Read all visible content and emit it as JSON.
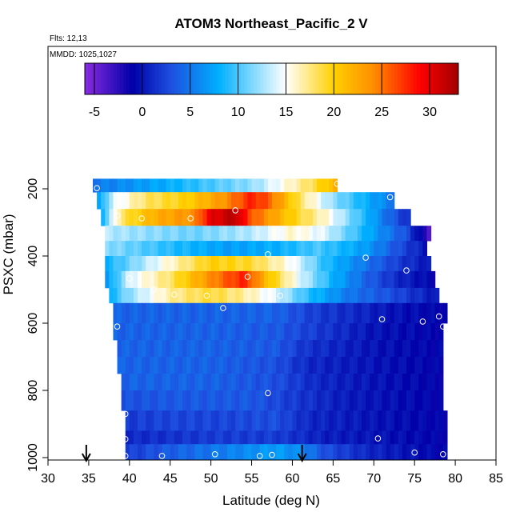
{
  "chart_data": {
    "type": "heatmap",
    "title": "ATOM3 Northeast_Pacific_2 V",
    "flights_label": "Flts: 12,13",
    "mmdd_label": "MMDD: 1025,1027",
    "xlabel": "Latitude (deg N)",
    "ylabel": "PSXC (mbar)",
    "xlim": [
      30,
      85
    ],
    "ylim": [
      1000,
      0
    ],
    "xticks": [
      "30",
      "35",
      "40",
      "45",
      "50",
      "55",
      "60",
      "65",
      "70",
      "75",
      "80",
      "85"
    ],
    "yticks": [
      "200",
      "400",
      "600",
      "800",
      "1000"
    ],
    "colorbar": {
      "range": [
        -6,
        33
      ],
      "tick_labels": [
        "-5",
        "0",
        "5",
        "10",
        "15",
        "20",
        "25",
        "30"
      ],
      "stops": [
        "#8a2be2",
        "#0000a8",
        "#1e4fe0",
        "#00b0ff",
        "#ffffff",
        "#ffd000",
        "#ff9000",
        "#ff0000",
        "#a00000"
      ]
    },
    "grid": false,
    "rows": [
      {
        "p_top": 170,
        "p_bot": 210,
        "lat_start": 35.5,
        "lat_end": 65.5,
        "knots": [
          [
            35.5,
            5
          ],
          [
            45,
            8
          ],
          [
            55,
            12
          ],
          [
            62,
            18
          ],
          [
            65.5,
            22
          ]
        ]
      },
      {
        "p_top": 210,
        "p_bot": 260,
        "lat_start": 36,
        "lat_end": 72.5,
        "knots": [
          [
            36,
            6
          ],
          [
            38,
            14
          ],
          [
            42,
            18
          ],
          [
            47,
            20
          ],
          [
            52,
            24
          ],
          [
            55,
            28
          ],
          [
            57,
            26
          ],
          [
            61,
            18
          ],
          [
            65,
            12
          ],
          [
            69,
            8
          ],
          [
            72.5,
            5
          ]
        ]
      },
      {
        "p_top": 260,
        "p_bot": 310,
        "lat_start": 36.5,
        "lat_end": 74.5,
        "knots": [
          [
            36.5,
            8
          ],
          [
            39,
            18
          ],
          [
            43,
            22
          ],
          [
            48,
            24
          ],
          [
            50,
            30
          ],
          [
            53,
            32
          ],
          [
            55,
            26
          ],
          [
            60,
            20
          ],
          [
            64,
            16
          ],
          [
            68,
            10
          ],
          [
            72,
            4
          ],
          [
            74.5,
            1
          ]
        ]
      },
      {
        "p_top": 310,
        "p_bot": 355,
        "lat_start": 37,
        "lat_end": 77,
        "knots": [
          [
            37,
            13
          ],
          [
            42,
            12
          ],
          [
            48,
            11
          ],
          [
            55,
            13
          ],
          [
            60,
            16
          ],
          [
            64,
            14
          ],
          [
            70,
            7
          ],
          [
            74,
            3
          ],
          [
            77,
            -4
          ]
        ]
      },
      {
        "p_top": 355,
        "p_bot": 400,
        "lat_start": 37,
        "lat_end": 76.5,
        "knots": [
          [
            37,
            12
          ],
          [
            45,
            9
          ],
          [
            52,
            7
          ],
          [
            58,
            8
          ],
          [
            63,
            10
          ],
          [
            69,
            7
          ],
          [
            73,
            3
          ],
          [
            76.5,
            0
          ]
        ]
      },
      {
        "p_top": 400,
        "p_bot": 445,
        "lat_start": 37,
        "lat_end": 77,
        "knots": [
          [
            37,
            8
          ],
          [
            41,
            12
          ],
          [
            45,
            16
          ],
          [
            50,
            20
          ],
          [
            55,
            19
          ],
          [
            60,
            15
          ],
          [
            64,
            9
          ],
          [
            69,
            5
          ],
          [
            73,
            2
          ],
          [
            77,
            0
          ]
        ]
      },
      {
        "p_top": 445,
        "p_bot": 495,
        "lat_start": 37,
        "lat_end": 77.5,
        "knots": [
          [
            37,
            6
          ],
          [
            40,
            14
          ],
          [
            45,
            18
          ],
          [
            50,
            24
          ],
          [
            54,
            28
          ],
          [
            57,
            21
          ],
          [
            61,
            14
          ],
          [
            65,
            8
          ],
          [
            69,
            4
          ],
          [
            73,
            1
          ],
          [
            77.5,
            -1
          ]
        ]
      },
      {
        "p_top": 495,
        "p_bot": 540,
        "lat_start": 37.5,
        "lat_end": 78,
        "knots": [
          [
            37.5,
            8
          ],
          [
            40,
            12
          ],
          [
            45,
            17
          ],
          [
            50,
            19
          ],
          [
            54,
            17
          ],
          [
            58,
            14
          ],
          [
            62,
            9
          ],
          [
            67,
            5
          ],
          [
            72,
            3
          ],
          [
            78,
            0
          ]
        ]
      },
      {
        "p_top": 540,
        "p_bot": 600,
        "lat_start": 38,
        "lat_end": 79,
        "knots": [
          [
            38,
            4
          ],
          [
            50,
            4
          ],
          [
            58,
            4
          ],
          [
            63,
            2
          ],
          [
            68,
            1
          ],
          [
            72,
            0
          ],
          [
            79,
            -1
          ]
        ]
      },
      {
        "p_top": 600,
        "p_bot": 650,
        "lat_start": 38,
        "lat_end": 78.5,
        "knots": [
          [
            38,
            4
          ],
          [
            50,
            4
          ],
          [
            58,
            3.5
          ],
          [
            63,
            2
          ],
          [
            70,
            0
          ],
          [
            78.5,
            -1
          ]
        ]
      },
      {
        "p_top": 650,
        "p_bot": 700,
        "lat_start": 38.5,
        "lat_end": 78.5,
        "knots": [
          [
            38.5,
            4
          ],
          [
            50,
            4
          ],
          [
            58,
            3.5
          ],
          [
            62,
            1.5
          ],
          [
            70,
            0
          ],
          [
            78.5,
            -1
          ]
        ]
      },
      {
        "p_top": 700,
        "p_bot": 750,
        "lat_start": 38.5,
        "lat_end": 78.5,
        "knots": [
          [
            38.5,
            4
          ],
          [
            50,
            4
          ],
          [
            58,
            3
          ],
          [
            62,
            1
          ],
          [
            70,
            0
          ],
          [
            78.5,
            -1
          ]
        ]
      },
      {
        "p_top": 750,
        "p_bot": 800,
        "lat_start": 39,
        "lat_end": 78.5,
        "knots": [
          [
            39,
            4
          ],
          [
            50,
            4
          ],
          [
            58,
            3
          ],
          [
            63,
            1
          ],
          [
            70,
            0
          ],
          [
            78.5,
            -1
          ]
        ]
      },
      {
        "p_top": 800,
        "p_bot": 860,
        "lat_start": 39,
        "lat_end": 78.5,
        "knots": [
          [
            39,
            3
          ],
          [
            45,
            3.5
          ],
          [
            55,
            3.5
          ],
          [
            60,
            2
          ],
          [
            66,
            0.5
          ],
          [
            78.5,
            -1
          ]
        ]
      },
      {
        "p_top": 860,
        "p_bot": 920,
        "lat_start": 39.5,
        "lat_end": 79,
        "knots": [
          [
            39.5,
            2
          ],
          [
            45,
            2.5
          ],
          [
            52,
            2.5
          ],
          [
            58,
            3
          ],
          [
            62,
            1
          ],
          [
            70,
            0
          ],
          [
            79,
            -1
          ]
        ]
      },
      {
        "p_top": 920,
        "p_bot": 960,
        "lat_start": 39.5,
        "lat_end": 79,
        "knots": [
          [
            39.5,
            1
          ],
          [
            50,
            2
          ],
          [
            58,
            2
          ],
          [
            64,
            0.5
          ],
          [
            70,
            0
          ],
          [
            79,
            -1
          ]
        ]
      },
      {
        "p_top": 960,
        "p_bot": 1005,
        "lat_start": 39.5,
        "lat_end": 79,
        "knots": [
          [
            39.5,
            2
          ],
          [
            46,
            4
          ],
          [
            50,
            5
          ],
          [
            54,
            6
          ],
          [
            58,
            7
          ],
          [
            61,
            6
          ],
          [
            64,
            3
          ],
          [
            69,
            1
          ],
          [
            74,
            0
          ],
          [
            79,
            -1
          ]
        ]
      }
    ],
    "points": [
      [
        36,
        198
      ],
      [
        65.5,
        185
      ],
      [
        72,
        225
      ],
      [
        41.5,
        288
      ],
      [
        47.5,
        288
      ],
      [
        53,
        264
      ],
      [
        38.5,
        280
      ],
      [
        77.5,
        352
      ],
      [
        57,
        395
      ],
      [
        69,
        405
      ],
      [
        35.5,
        453
      ],
      [
        74,
        443
      ],
      [
        40,
        467
      ],
      [
        43,
        500
      ],
      [
        45.5,
        515
      ],
      [
        49.5,
        518
      ],
      [
        54.5,
        462
      ],
      [
        58.5,
        518
      ],
      [
        51.5,
        555
      ],
      [
        38.5,
        610
      ],
      [
        71,
        588
      ],
      [
        76,
        595
      ],
      [
        78,
        580
      ],
      [
        78.5,
        610
      ],
      [
        57,
        808
      ],
      [
        39.5,
        870
      ],
      [
        39.5,
        945
      ],
      [
        70.5,
        943
      ],
      [
        39.5,
        995
      ],
      [
        44,
        995
      ],
      [
        50.5,
        990
      ],
      [
        56,
        995
      ],
      [
        57.5,
        992
      ],
      [
        75,
        985
      ],
      [
        78.5,
        990
      ]
    ],
    "arrows": [
      34.7,
      61.2
    ]
  }
}
